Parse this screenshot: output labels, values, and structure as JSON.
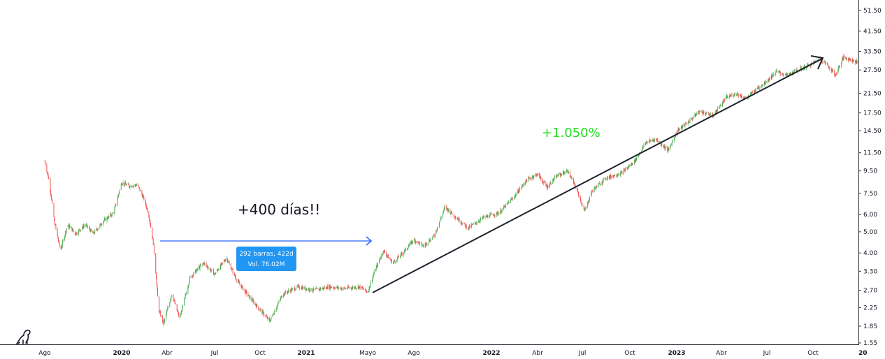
{
  "chart_data": {
    "type": "candlestick",
    "y_scale": "log",
    "ylim": [
      1.55,
      58
    ],
    "y_ticks": [
      "51.50",
      "41.50",
      "33.50",
      "27.50",
      "21.50",
      "17.50",
      "14.50",
      "11.50",
      "9.50",
      "7.50",
      "6.00",
      "5.00",
      "4.00",
      "3.30",
      "2.70",
      "2.25",
      "1.85",
      "1.55"
    ],
    "x_ticks": [
      {
        "label": "Ago",
        "bold": false
      },
      {
        "label": "2020",
        "bold": true
      },
      {
        "label": "Abr",
        "bold": false
      },
      {
        "label": "Jul",
        "bold": false
      },
      {
        "label": "Oct",
        "bold": false
      },
      {
        "label": "2021",
        "bold": true
      },
      {
        "label": "Mayo",
        "bold": false
      },
      {
        "label": "Ago",
        "bold": false
      },
      {
        "label": "2022",
        "bold": true
      },
      {
        "label": "Abr",
        "bold": false
      },
      {
        "label": "Jul",
        "bold": false
      },
      {
        "label": "Oct",
        "bold": false
      },
      {
        "label": "2023",
        "bold": true
      },
      {
        "label": "Abr",
        "bold": false
      },
      {
        "label": "Jul",
        "bold": false
      },
      {
        "label": "Oct",
        "bold": false
      },
      {
        "label": "20",
        "bold": true
      }
    ],
    "price_path": [
      [
        "2019-08-01",
        10.5
      ],
      [
        "2019-08-10",
        8.5
      ],
      [
        "2019-08-20",
        5.6
      ],
      [
        "2019-09-01",
        4.1
      ],
      [
        "2019-09-15",
        5.4
      ],
      [
        "2019-10-01",
        4.9
      ],
      [
        "2019-10-20",
        5.4
      ],
      [
        "2019-11-05",
        4.9
      ],
      [
        "2019-11-25",
        5.6
      ],
      [
        "2019-12-15",
        6.1
      ],
      [
        "2019-12-31",
        8.4
      ],
      [
        "2020-01-15",
        8.1
      ],
      [
        "2020-02-01",
        8.2
      ],
      [
        "2020-02-15",
        7.0
      ],
      [
        "2020-02-25",
        5.8
      ],
      [
        "2020-03-05",
        4.3
      ],
      [
        "2020-03-15",
        2.2
      ],
      [
        "2020-03-25",
        1.9
      ],
      [
        "2020-04-10",
        2.6
      ],
      [
        "2020-04-25",
        2.0
      ],
      [
        "2020-05-15",
        3.1
      ],
      [
        "2020-06-10",
        3.6
      ],
      [
        "2020-07-01",
        3.2
      ],
      [
        "2020-07-25",
        3.8
      ],
      [
        "2020-08-15",
        3.0
      ],
      [
        "2020-09-10",
        2.5
      ],
      [
        "2020-10-01",
        2.2
      ],
      [
        "2020-10-20",
        1.95
      ],
      [
        "2020-11-15",
        2.6
      ],
      [
        "2020-12-15",
        2.8
      ],
      [
        "2021-01-15",
        2.7
      ],
      [
        "2021-02-15",
        2.8
      ],
      [
        "2021-03-15",
        2.75
      ],
      [
        "2021-04-15",
        2.8
      ],
      [
        "2021-05-01",
        2.65
      ],
      [
        "2021-05-15",
        3.3
      ],
      [
        "2021-06-01",
        4.1
      ],
      [
        "2021-06-20",
        3.6
      ],
      [
        "2021-07-10",
        4.0
      ],
      [
        "2021-08-01",
        4.6
      ],
      [
        "2021-08-20",
        4.3
      ],
      [
        "2021-09-10",
        4.8
      ],
      [
        "2021-10-01",
        6.5
      ],
      [
        "2021-10-20",
        5.9
      ],
      [
        "2021-11-15",
        5.2
      ],
      [
        "2021-12-15",
        5.8
      ],
      [
        "2022-01-15",
        6.1
      ],
      [
        "2022-02-15",
        7.3
      ],
      [
        "2022-03-10",
        8.6
      ],
      [
        "2022-04-01",
        9.2
      ],
      [
        "2022-04-20",
        8.0
      ],
      [
        "2022-05-10",
        9.0
      ],
      [
        "2022-06-01",
        9.5
      ],
      [
        "2022-06-20",
        7.8
      ],
      [
        "2022-07-05",
        6.2
      ],
      [
        "2022-07-20",
        7.7
      ],
      [
        "2022-08-15",
        8.8
      ],
      [
        "2022-09-15",
        9.3
      ],
      [
        "2022-10-10",
        10.5
      ],
      [
        "2022-11-01",
        12.8
      ],
      [
        "2022-11-20",
        13.3
      ],
      [
        "2022-12-15",
        11.8
      ],
      [
        "2023-01-01",
        14.5
      ],
      [
        "2023-01-25",
        16.0
      ],
      [
        "2023-02-15",
        17.8
      ],
      [
        "2023-03-15",
        17.0
      ],
      [
        "2023-04-10",
        20.5
      ],
      [
        "2023-05-01",
        21.5
      ],
      [
        "2023-05-20",
        20.3
      ],
      [
        "2023-06-10",
        22.5
      ],
      [
        "2023-07-01",
        24.5
      ],
      [
        "2023-07-20",
        27.0
      ],
      [
        "2023-08-10",
        26.0
      ],
      [
        "2023-09-01",
        27.5
      ],
      [
        "2023-09-25",
        29.0
      ],
      [
        "2023-10-15",
        31.0
      ],
      [
        "2023-10-30",
        29.0
      ],
      [
        "2023-11-15",
        26.0
      ],
      [
        "2023-12-01",
        31.5
      ],
      [
        "2023-12-31",
        29.8
      ]
    ],
    "annotations": {
      "measure_label": "+400 días!!",
      "measure_box_line1": "292 barras, 422d",
      "measure_box_line2": "Vol. 76.02M",
      "gain_label": "+1.050%"
    },
    "colors": {
      "up": "#26a69a",
      "down": "#ef5350",
      "up_green": "#4caf50",
      "measure": "#2962ff",
      "box": "#2196f3",
      "trend": "#1e222d",
      "gain_text": "#22dd22"
    },
    "grid": false,
    "legend": "none"
  }
}
